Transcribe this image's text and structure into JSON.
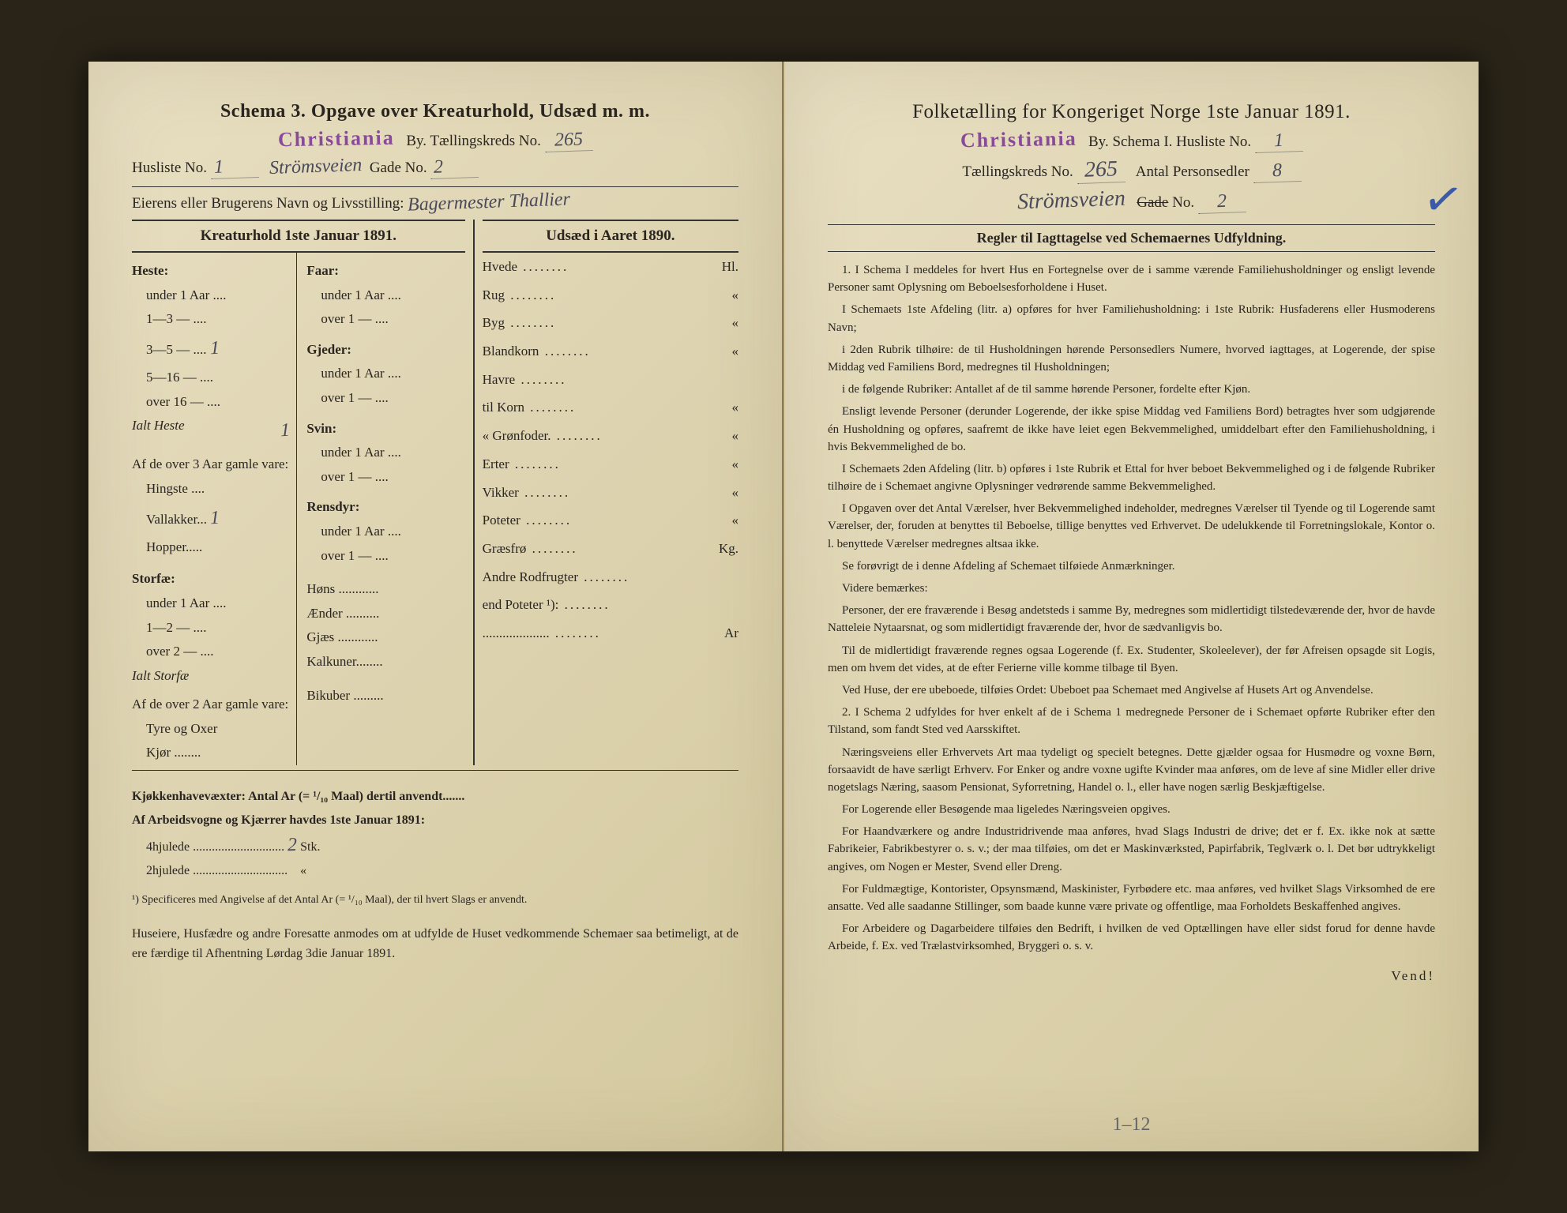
{
  "left": {
    "schema_line": "Schema 3.  Opgave over Kreaturhold, Udsæd m. m.",
    "city_stamp": "Christiania",
    "by_label": "By.  Tællingskreds No.",
    "kreds_no": "265",
    "husliste_label": "Husliste No.",
    "husliste_no": "1",
    "street_hand": "Strömsveien",
    "gade_label": "Gade No.",
    "gade_no": "2",
    "owner_label": "Eierens eller Brugerens Navn og Livsstilling:",
    "owner_hand": "Bagermester Thallier",
    "col_l_header": "Kreaturhold 1ste Januar 1891.",
    "col_r_header": "Udsæd i Aaret 1890.",
    "heste": {
      "title": "Heste:",
      "rows": [
        "under 1 Aar ....",
        "1—3  —  ....",
        "3—5  —  ....",
        "5—16 —  ....",
        "over 16 — ...."
      ],
      "ialt": "Ialt Heste",
      "over3": "Af de over 3 Aar gamle vare:",
      "over3_rows": [
        "Hingste ....",
        "Vallakker...",
        "Hopper....."
      ]
    },
    "storfae": {
      "title": "Storfæ:",
      "rows": [
        "under 1 Aar ....",
        "1—2  —  ....",
        "over 2  —  ...."
      ],
      "ialt": "Ialt Storfæ",
      "over2": "Af de over 2 Aar gamle vare:",
      "over2_rows": [
        "Tyre og Oxer",
        "Kjør ........"
      ]
    },
    "faar": {
      "title": "Faar:",
      "rows": [
        "under 1 Aar ....",
        "over 1  —  ...."
      ]
    },
    "gjeder": {
      "title": "Gjeder:",
      "rows": [
        "under 1 Aar ....",
        "over 1  —  ...."
      ]
    },
    "svin": {
      "title": "Svin:",
      "rows": [
        "under 1 Aar ....",
        "over 1  —  ...."
      ]
    },
    "rensdyr": {
      "title": "Rensdyr:",
      "rows": [
        "under 1 Aar ....",
        "over 1  —  ...."
      ]
    },
    "hons": "Høns ............",
    "aender": "Ænder ..........",
    "gjaes": "Gjæs ............",
    "kalkuner": "Kalkuner........",
    "bikuber": "Bikuber .........",
    "seeds": [
      {
        "l": "Hvede",
        "u": "Hl."
      },
      {
        "l": "Rug",
        "u": "«"
      },
      {
        "l": "Byg",
        "u": "«"
      },
      {
        "l": "Blandkorn",
        "u": "«"
      },
      {
        "l": "Havre",
        "u": ""
      },
      {
        "l": "  til Korn",
        "u": "«"
      },
      {
        "l": "  « Grønfoder.",
        "u": "«"
      },
      {
        "l": "Erter",
        "u": "«"
      },
      {
        "l": "Vikker",
        "u": "«"
      },
      {
        "l": "Poteter",
        "u": "«"
      },
      {
        "l": "Græsfrø",
        "u": "Kg."
      },
      {
        "l": "Andre Rodfrugter",
        "u": ""
      },
      {
        "l": "  end Poteter ¹):",
        "u": ""
      },
      {
        "l": "....................",
        "u": "Ar"
      }
    ],
    "kjokken": "Kjøkkenhavevæxter:  Antal Ar (= ¹/₁₀ Maal) dertil anvendt.......",
    "vogne_hdr": "Af Arbeidsvogne og Kjærrer havdes 1ste Januar 1891:",
    "vogne_4": "4hjulede .............................",
    "vogne_4_val": "2",
    "vogne_4_unit": "Stk.",
    "vogne_2": "2hjulede ..............................",
    "vogne_2_unit": "«",
    "foot1": "¹) Specificeres med Angivelse af det Antal Ar (= ¹/₁₀ Maal), der til hvert Slags er anvendt.",
    "bottom": "Huseiere, Husfædre og andre Foresatte anmodes om at udfylde de Huset vedkommende Schemaer saa betimeligt, at de ere færdige til Afhentning Lørdag 3die Januar 1891."
  },
  "right": {
    "title": "Folketælling for Kongeriget Norge 1ste Januar 1891.",
    "city_stamp": "Christiania",
    "by_label": "By.  Schema I.  Husliste No.",
    "husliste_no": "1",
    "kreds_label": "Tællingskreds No.",
    "kreds_no": "265",
    "pers_label": "Antal Personsedler",
    "pers_no": "8",
    "street_hand": "Strömsveien",
    "gade_struck": "Gade",
    "gade_no_label": "No.",
    "gade_no": "2",
    "rules_header": "Regler til Iagttagelse ved Schemaernes Udfyldning.",
    "rules": [
      "1. I Schema I meddeles for hvert Hus en Fortegnelse over de i samme værende Familiehusholdninger og ensligt levende Personer samt Oplysning om Beboelsesforholdene i Huset.",
      "I Schemaets 1ste Afdeling (litr. a) opføres for hver Familiehusholdning: i 1ste Rubrik: Husfaderens eller Husmoderens Navn;",
      "i 2den Rubrik tilhøire: de til Husholdningen hørende Personsedlers Numere, hvorved iagttages, at Logerende, der spise Middag ved Familiens Bord, medregnes til Husholdningen;",
      "i de følgende Rubriker: Antallet af de til samme hørende Personer, fordelte efter Kjøn.",
      "Ensligt levende Personer (derunder Logerende, der ikke spise Middag ved Familiens Bord) betragtes hver som udgjørende én Husholdning og opføres, saafremt de ikke have leiet egen Bekvemmelighed, umiddelbart efter den Familiehusholdning, i hvis Bekvemmelighed de bo.",
      "I Schemaets 2den Afdeling (litr. b) opføres i 1ste Rubrik et Ettal for hver beboet Bekvemmelighed og i de følgende Rubriker tilhøire de i Schemaet angivne Oplysninger vedrørende samme Bekvemmelighed.",
      "I Opgaven over det Antal Værelser, hver Bekvemmelighed indeholder, medregnes Værelser til Tyende og til Logerende samt Værelser, der, foruden at benyttes til Beboelse, tillige benyttes ved Erhvervet. De udelukkende til Forretningslokale, Kontor o. l. benyttede Værelser medregnes altsaa ikke.",
      "Se forøvrigt de i denne Afdeling af Schemaet tilføiede Anmærkninger.",
      "Videre bemærkes:",
      "Personer, der ere fraværende i Besøg andetsteds i samme By, medregnes som midlertidigt tilstedeværende der, hvor de havde Natteleie Nytaarsnat, og som midlertidigt fraværende der, hvor de sædvanligvis bo.",
      "Til de midlertidigt fraværende regnes ogsaa Logerende (f. Ex. Studenter, Skoleelever), der før Afreisen opsagde sit Logis, men om hvem det vides, at de efter Ferierne ville komme tilbage til Byen.",
      "Ved Huse, der ere ubeboede, tilføies Ordet: Ubeboet paa Schemaet med Angivelse af Husets Art og Anvendelse.",
      "2. I Schema 2 udfyldes for hver enkelt af de i Schema 1 medregnede Personer de i Schemaet opførte Rubriker efter den Tilstand, som fandt Sted ved Aarsskiftet.",
      "Næringsveiens eller Erhvervets Art maa tydeligt og specielt betegnes. Dette gjælder ogsaa for Husmødre og voxne Børn, forsaavidt de have særligt Erhverv. For Enker og andre voxne ugifte Kvinder maa anføres, om de leve af sine Midler eller drive nogetslags Næring, saasom Pensionat, Syforretning, Handel o. l., eller have nogen særlig Beskjæftigelse.",
      "For Logerende eller Besøgende maa ligeledes Næringsveien opgives.",
      "For Haandværkere og andre Industridrivende maa anføres, hvad Slags Industri de drive; det er f. Ex. ikke nok at sætte Fabrikeier, Fabrikbestyrer o. s. v.; der maa tilføies, om det er Maskinværksted, Papirfabrik, Teglværk o. l. Det bør udtrykkeligt angives, om Nogen er Mester, Svend eller Dreng.",
      "For Fuldmægtige, Kontorister, Opsynsmænd, Maskinister, Fyrbødere etc. maa anføres, ved hvilket Slags Virksomhed de ere ansatte. Ved alle saadanne Stillinger, som baade kunne være private og offentlige, maa Forholdets Beskaffenhed angives.",
      "For Arbeidere og Dagarbeidere tilføies den Bedrift, i hvilken de ved Optællingen have eller sidst forud for denne havde Arbeide, f. Ex. ved Trælastvirksomhed, Bryggeri o. s. v."
    ],
    "vend": "Vend!",
    "pencil": "1–12"
  },
  "colors": {
    "paper": "#ddd3b0",
    "ink": "#2a2520",
    "stamp": "#8a4a9a",
    "handwriting": "#4a4a5a",
    "blue_check": "#3a5aaa"
  }
}
